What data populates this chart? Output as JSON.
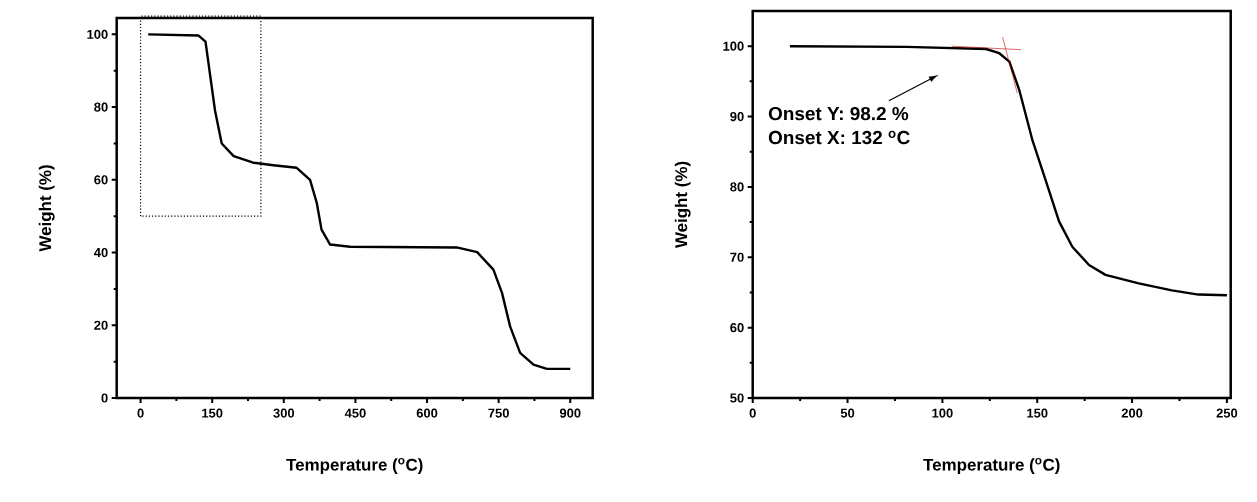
{
  "chart_data": [
    {
      "type": "line",
      "xlabel": "Temperature ($^{o}$C)",
      "ylabel": "Weight (%)",
      "xlim": [
        -50,
        947
      ],
      "ylim": [
        0,
        104.5
      ],
      "xticks": [
        0,
        150,
        300,
        450,
        600,
        750,
        900
      ],
      "yticks": [
        0,
        20,
        40,
        60,
        80,
        100
      ],
      "series": [
        {
          "color": "#000000",
          "x": [
            16,
            121,
            136,
            146,
            156,
            170,
            195,
            236,
            278,
            327,
            355,
            369,
            379,
            397,
            439,
            662,
            705,
            739,
            757,
            774,
            795,
            823,
            851,
            900
          ],
          "values": [
            100,
            99.7,
            98,
            88.5,
            79,
            70,
            66.5,
            64.7,
            64,
            63.3,
            60,
            53.7,
            46.3,
            42.2,
            41.6,
            41.4,
            40.1,
            35.3,
            28.9,
            19.7,
            12.4,
            9.2,
            8,
            8
          ]
        }
      ],
      "grid": false,
      "line_style": "solid",
      "marker": "none"
    },
    {
      "type": "line",
      "xlabel": "Temperature ($^{o}$C)",
      "ylabel": "Weight (%)",
      "xlim": [
        0,
        252
      ],
      "ylim": [
        50,
        105
      ],
      "xticks": [
        0,
        50,
        100,
        150,
        200,
        250
      ],
      "yticks": [
        50,
        60,
        70,
        80,
        90,
        100
      ],
      "series": [
        {
          "color": "#000000",
          "x": [
            19.6,
            81,
            123,
            130,
            135.3,
            140.5,
            147.5,
            154.5,
            161.5,
            168.5,
            177.3,
            186,
            203.5,
            221,
            235,
            250
          ],
          "values": [
            100,
            99.9,
            99.6,
            99.0,
            97.8,
            93.8,
            86.6,
            80.9,
            75.1,
            71.5,
            68.9,
            67.5,
            66.3,
            65.3,
            64.7,
            64.6
          ]
        },
        {
          "color": "#cc0000",
          "x": [
            105,
            141.4
          ],
          "values": [
            100,
            99.5
          ]
        },
        {
          "color": "#cc0000",
          "x": [
            131.7,
            139.5
          ],
          "values": [
            101.3,
            93.3
          ]
        }
      ],
      "annotations": [
        "Onset Y: 98.2 %",
        "Onset X: 132 $^{o}$C"
      ],
      "grid": false,
      "line_style": "solid",
      "marker": "none"
    }
  ]
}
